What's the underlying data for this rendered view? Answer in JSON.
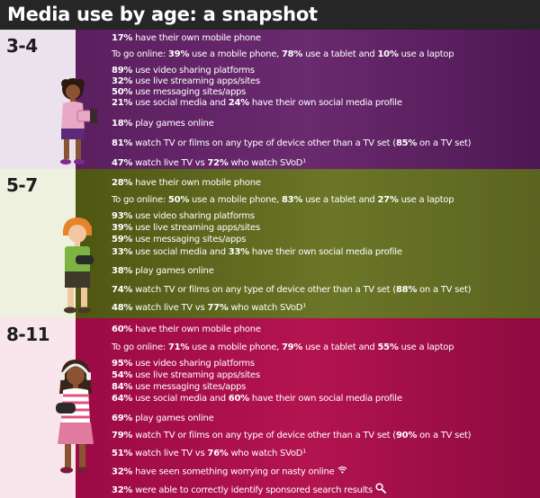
{
  "title": "Media use by age: a snapshot",
  "sections": [
    {
      "age": "3-4",
      "lines": [
        {
          "parts": [
            {
              "b": "17%"
            },
            {
              "t": " have their own mobile phone"
            }
          ]
        },
        {
          "parts": [
            {
              "t": "To go online: "
            },
            {
              "b": "39%"
            },
            {
              "t": " use a mobile phone, "
            },
            {
              "b": "78%"
            },
            {
              "t": " use a tablet and "
            },
            {
              "b": "10%"
            },
            {
              "t": " use a laptop"
            }
          ]
        },
        {
          "parts": [
            {
              "b": "89%"
            },
            {
              "t": " use video sharing platforms"
            }
          ]
        },
        {
          "parts": [
            {
              "b": "32%"
            },
            {
              "t": " use live streaming apps/sites"
            }
          ]
        },
        {
          "parts": [
            {
              "b": "50%"
            },
            {
              "t": " use messaging sites/apps"
            }
          ]
        },
        {
          "parts": [
            {
              "b": "21%"
            },
            {
              "t": " use social media and "
            },
            {
              "b": "24%"
            },
            {
              "t": " have their own social media profile"
            }
          ]
        },
        {
          "parts": [
            {
              "b": "18%"
            },
            {
              "t": " play games online"
            }
          ]
        },
        {
          "parts": [
            {
              "b": "81%"
            },
            {
              "t": " watch TV or films on any type of device other than a TV set ("
            },
            {
              "b": "85%"
            },
            {
              "t": " on a TV set)"
            }
          ]
        },
        {
          "parts": [
            {
              "b": "47%"
            },
            {
              "t": " watch live TV vs "
            },
            {
              "b": "72%"
            },
            {
              "t": " who watch SVoD¹"
            }
          ]
        }
      ]
    },
    {
      "age": "5-7",
      "lines": [
        {
          "parts": [
            {
              "b": "28%"
            },
            {
              "t": " have their own mobile phone"
            }
          ]
        },
        {
          "parts": [
            {
              "t": "To go online: "
            },
            {
              "b": "50%"
            },
            {
              "t": " use a mobile phone, "
            },
            {
              "b": "83%"
            },
            {
              "t": " use a tablet and "
            },
            {
              "b": "27%"
            },
            {
              "t": " use a laptop"
            }
          ]
        },
        {
          "parts": [
            {
              "b": "93%"
            },
            {
              "t": " use video sharing platforms"
            }
          ]
        },
        {
          "parts": [
            {
              "b": "39%"
            },
            {
              "t": " use live streaming apps/sites"
            }
          ]
        },
        {
          "parts": [
            {
              "b": "59%"
            },
            {
              "t": " use messaging sites/apps"
            }
          ]
        },
        {
          "parts": [
            {
              "b": "33%"
            },
            {
              "t": " use social media and "
            },
            {
              "b": "33%"
            },
            {
              "t": " have their own social media profile"
            }
          ]
        },
        {
          "parts": [
            {
              "b": "38%"
            },
            {
              "t": " play games online"
            }
          ]
        },
        {
          "parts": [
            {
              "b": "74%"
            },
            {
              "t": " watch TV or films on any type of device other than a TV set ("
            },
            {
              "b": "88%"
            },
            {
              "t": " on a TV set)"
            }
          ]
        },
        {
          "parts": [
            {
              "b": "48%"
            },
            {
              "t": " watch live TV vs "
            },
            {
              "b": "77%"
            },
            {
              "t": " who watch SVoD¹"
            }
          ]
        }
      ]
    },
    {
      "age": "8-11",
      "lines": [
        {
          "parts": [
            {
              "b": "60%"
            },
            {
              "t": " have their own mobile phone"
            }
          ]
        },
        {
          "parts": [
            {
              "t": "To go online: "
            },
            {
              "b": "71%"
            },
            {
              "t": " use a mobile phone, "
            },
            {
              "b": "79%"
            },
            {
              "t": " use a tablet and "
            },
            {
              "b": "55%"
            },
            {
              "t": " use a laptop"
            }
          ]
        },
        {
          "parts": [
            {
              "b": "95%"
            },
            {
              "t": " use video sharing platforms"
            }
          ]
        },
        {
          "parts": [
            {
              "b": "54%"
            },
            {
              "t": " use live streaming apps/sites"
            }
          ]
        },
        {
          "parts": [
            {
              "b": "84%"
            },
            {
              "t": " use messaging sites/apps"
            }
          ]
        },
        {
          "parts": [
            {
              "b": "64%"
            },
            {
              "t": " use social media and "
            },
            {
              "b": "60%"
            },
            {
              "t": " have their own social media profile"
            }
          ]
        },
        {
          "parts": [
            {
              "b": "69%"
            },
            {
              "t": " play games online"
            }
          ]
        },
        {
          "parts": [
            {
              "b": "79%"
            },
            {
              "t": " watch TV or films on any type of device other than a TV set ("
            },
            {
              "b": "90%"
            },
            {
              "t": " on a TV set)"
            }
          ]
        },
        {
          "parts": [
            {
              "b": "51%"
            },
            {
              "t": " watch live TV vs "
            },
            {
              "b": "76%"
            },
            {
              "t": " who watch SVoD¹"
            }
          ]
        },
        {
          "parts": [
            {
              "b": "32%"
            },
            {
              "t": " have seen something worrying or nasty online"
            }
          ],
          "icon": "wifi-icon"
        },
        {
          "parts": [
            {
              "b": "32%"
            },
            {
              "t": " were able to correctly identify sponsored search results"
            }
          ],
          "icon": "magnifier-icon"
        }
      ]
    }
  ],
  "colors": {
    "title_bar": "#262626",
    "section_3_4": "#5b1f5f",
    "section_5_7": "#5f6a1e",
    "section_8_11": "#a60f4a"
  }
}
